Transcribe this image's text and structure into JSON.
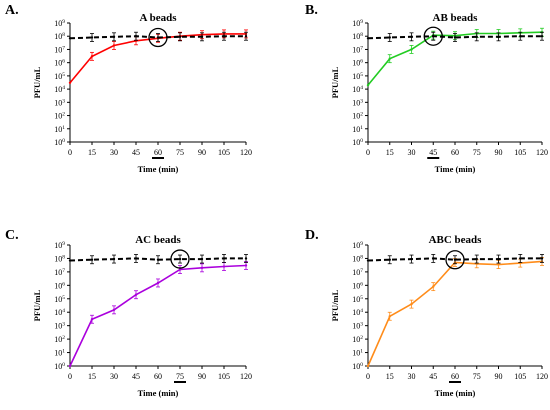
{
  "chart_data": [
    {
      "panel": "A.",
      "type": "line",
      "title": "A beads",
      "xlabel": "Time (min)",
      "ylabel": "PFU/mL",
      "x_ticks": [
        "0",
        "15",
        "30",
        "45",
        "60",
        "75",
        "90",
        "105",
        "120"
      ],
      "y_ticks": [
        "10⁰",
        "10¹",
        "10²",
        "10³",
        "10⁴",
        "10⁵",
        "10⁶",
        "10⁷",
        "10⁸",
        "10⁹"
      ],
      "yscale": "log",
      "xlim": [
        0,
        120
      ],
      "ylim": [
        1,
        1000000000
      ],
      "highlight_time": 60,
      "series": [
        {
          "style": "solid",
          "color": "#ff0000",
          "x": [
            0,
            15,
            30,
            45,
            60,
            75,
            90,
            105,
            120
          ],
          "y": [
            30000,
            3000000,
            20000000,
            45000000,
            70000000,
            100000000,
            130000000,
            150000000,
            150000000
          ]
        },
        {
          "style": "dashed",
          "color": "#000000",
          "x": [
            0,
            15,
            30,
            45,
            60,
            75,
            90,
            105,
            120
          ],
          "y": [
            70000000,
            80000000,
            90000000,
            100000000,
            80000000,
            90000000,
            90000000,
            100000000,
            100000000
          ]
        }
      ]
    },
    {
      "panel": "B.",
      "type": "line",
      "title": "AB beads",
      "xlabel": "Time (min)",
      "ylabel": "PFU/mL",
      "x_ticks": [
        "0",
        "15",
        "30",
        "45",
        "60",
        "75",
        "90",
        "105",
        "120"
      ],
      "y_ticks": [
        "10⁰",
        "10¹",
        "10²",
        "10³",
        "10⁴",
        "10⁵",
        "10⁶",
        "10⁷",
        "10⁸",
        "10⁹"
      ],
      "yscale": "log",
      "xlim": [
        0,
        120
      ],
      "ylim": [
        1,
        1000000000
      ],
      "highlight_time": 45,
      "series": [
        {
          "style": "solid",
          "color": "#22cc22",
          "x": [
            0,
            15,
            30,
            45,
            60,
            75,
            90,
            105,
            120
          ],
          "y": [
            20000,
            2000000,
            10000000,
            120000000,
            110000000,
            160000000,
            160000000,
            180000000,
            200000000
          ]
        },
        {
          "style": "dashed",
          "color": "#000000",
          "x": [
            0,
            15,
            30,
            45,
            60,
            75,
            90,
            105,
            120
          ],
          "y": [
            70000000,
            80000000,
            90000000,
            100000000,
            80000000,
            90000000,
            90000000,
            100000000,
            100000000
          ]
        }
      ]
    },
    {
      "panel": "C.",
      "type": "line",
      "title": "AC beads",
      "xlabel": "Time (min)",
      "ylabel": "PFU/mL",
      "x_ticks": [
        "0",
        "15",
        "30",
        "45",
        "60",
        "75",
        "90",
        "105",
        "120"
      ],
      "y_ticks": [
        "10⁰",
        "10¹",
        "10²",
        "10³",
        "10⁴",
        "10⁵",
        "10⁶",
        "10⁷",
        "10⁸",
        "10⁹"
      ],
      "yscale": "log",
      "xlim": [
        0,
        120
      ],
      "ylim": [
        1,
        1000000000
      ],
      "highlight_time": 75,
      "series": [
        {
          "style": "solid",
          "color": "#aa00dd",
          "x": [
            0,
            15,
            30,
            45,
            60,
            75,
            90,
            105,
            120
          ],
          "y": [
            1,
            3000,
            15000,
            200000,
            1500000,
            15000000,
            20000000,
            25000000,
            30000000
          ]
        },
        {
          "style": "dashed",
          "color": "#000000",
          "x": [
            0,
            15,
            30,
            45,
            60,
            75,
            90,
            105,
            120
          ],
          "y": [
            70000000,
            80000000,
            90000000,
            100000000,
            80000000,
            90000000,
            90000000,
            100000000,
            100000000
          ]
        }
      ]
    },
    {
      "panel": "D.",
      "type": "line",
      "title": "ABC beads",
      "xlabel": "Time (min)",
      "ylabel": "PFU/mL",
      "x_ticks": [
        "0",
        "15",
        "30",
        "45",
        "60",
        "75",
        "90",
        "105",
        "120"
      ],
      "y_ticks": [
        "10⁰",
        "10¹",
        "10²",
        "10³",
        "10⁴",
        "10⁵",
        "10⁶",
        "10⁷",
        "10⁸",
        "10⁹"
      ],
      "yscale": "log",
      "xlim": [
        0,
        120
      ],
      "ylim": [
        1,
        1000000000
      ],
      "highlight_time": 60,
      "series": [
        {
          "style": "solid",
          "color": "#ff8c1a",
          "x": [
            0,
            15,
            30,
            45,
            60,
            75,
            90,
            105,
            120
          ],
          "y": [
            1,
            5000,
            40000,
            800000,
            50000000,
            40000000,
            35000000,
            45000000,
            60000000
          ]
        },
        {
          "style": "dashed",
          "color": "#000000",
          "x": [
            0,
            15,
            30,
            45,
            60,
            75,
            90,
            105,
            120
          ],
          "y": [
            70000000,
            80000000,
            90000000,
            100000000,
            80000000,
            90000000,
            90000000,
            100000000,
            100000000
          ]
        }
      ]
    }
  ]
}
